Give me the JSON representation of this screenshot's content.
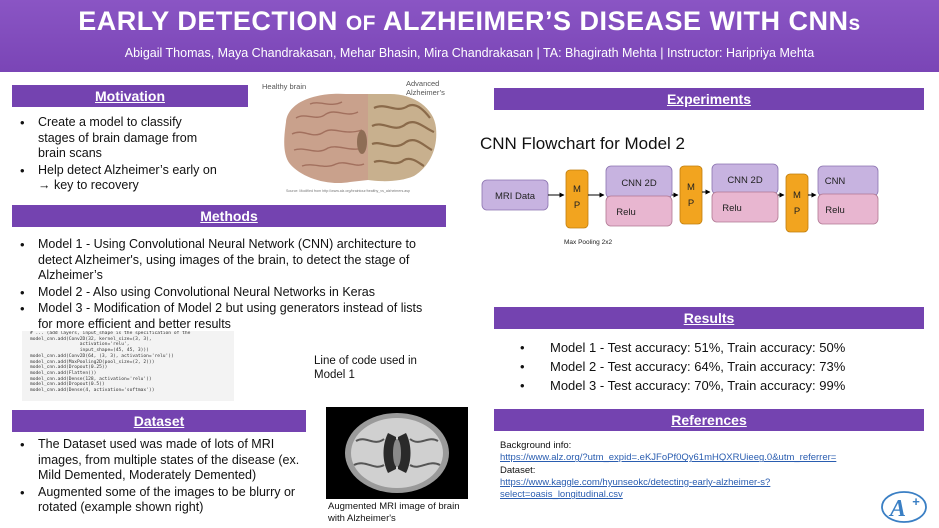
{
  "header": {
    "title": "EARLY DETECTION OF ALZHEIMER’S DISEASE WITH CNNs",
    "title_main_1": "EARLY DETECTION ",
    "title_of": "OF",
    "title_main_2": " ALZHEIMER’S DISEASE WITH CNN",
    "title_s": "s",
    "authors": "Abigail Thomas, Maya Chandrakasan, Mehar Bhasin, Mira Chandrakasan | TA: Bhagirath Mehta | Instructor: Haripriya Mehta"
  },
  "motivation": {
    "heading": "Motivation",
    "items": [
      "Create a model to classify stages of brain damage from brain scans",
      "Help detect Alzheimer’s early on → key to recovery"
    ]
  },
  "brain_figure": {
    "label_left": "Healthy brain",
    "label_right": "Advanced Alzheimer’s",
    "source": "Source: Modified from http://www.alz.org/braintour/healthy_vs_alzheimers.asp"
  },
  "methods": {
    "heading": "Methods",
    "items": [
      "Model 1 - Using Convolutional Neural Network (CNN)  architecture to detect Alzheimer's, using images of the brain, to detect the stage of Alzheimer’s",
      "Model 2 - Also using Convolutional Neural Networks in Keras",
      "Model 3 - Modification of Model 2 but using generators instead of lists for more efficient and better results"
    ],
    "code_lines": [
      "# ... (add layers, input_shape is the specification of the",
      "model_cnn.add(Conv2D(32, kernel_size=(3, 3),",
      "                  activation='relu',",
      "                  input_shape=(45, 45, 3)))",
      "model_cnn.add(Conv2D(64, (3, 3), activation='relu'))",
      "model_cnn.add(MaxPooling2D(pool_size=(2, 2)))",
      "model_cnn.add(Dropout(0.25))",
      "model_cnn.add(Flatten())",
      "model_cnn.add(Dense(128, activation='relu'))",
      "model_cnn.add(Dropout(0.5))",
      "model_cnn.add(Dense(4, activation='softmax'))"
    ],
    "code_caption": "Line of code used in Model 1"
  },
  "dataset": {
    "heading": "Dataset",
    "items": [
      "The Dataset used was made of lots of MRI images, from multiple states of the disease (ex. Mild Demented, Moderately Demented)",
      "Augmented some of the images to be blurry or rotated (example shown right)"
    ],
    "mri_caption": "Augmented MRI image of brain with Alzheimer's"
  },
  "experiments": {
    "heading": "Experiments",
    "flow_title": "CNN Flowchart for Model 2",
    "flow": {
      "input": "MRI Data",
      "mp_top": "M",
      "mp_bottom": "P",
      "blocks": [
        "CNN 2D",
        "CNN 2D",
        "CNN"
      ],
      "relu": "Relu",
      "mp_caption": "Max Pooling 2x2"
    }
  },
  "results": {
    "heading": "Results",
    "items": [
      "Model 1 - Test accuracy: 51%, Train accuracy: 50%",
      "Model 2 - Test accuracy: 64%, Train accuracy: 73%",
      "Model 3 - Test accuracy: 70%, Train accuracy: 99%"
    ]
  },
  "references": {
    "heading": "References",
    "bg_label": "Background info:",
    "bg_link": "https://www.alz.org/?utm_expid=.eKJFoPf0Qy61mHQXRUieeg.0&utm_referrer=",
    "ds_label": "Dataset:",
    "ds_link": "https://www.kaggle.com/hyunseokc/detecting-early-alzheimer-s?select=oasis_longitudinal.csv"
  },
  "colors": {
    "purple": "#7443b0",
    "flow_box": "#c7b3e0",
    "relu_box": "#e8b6d0",
    "mp_box": "#f2a41f"
  },
  "logo": {
    "text": "A+"
  }
}
